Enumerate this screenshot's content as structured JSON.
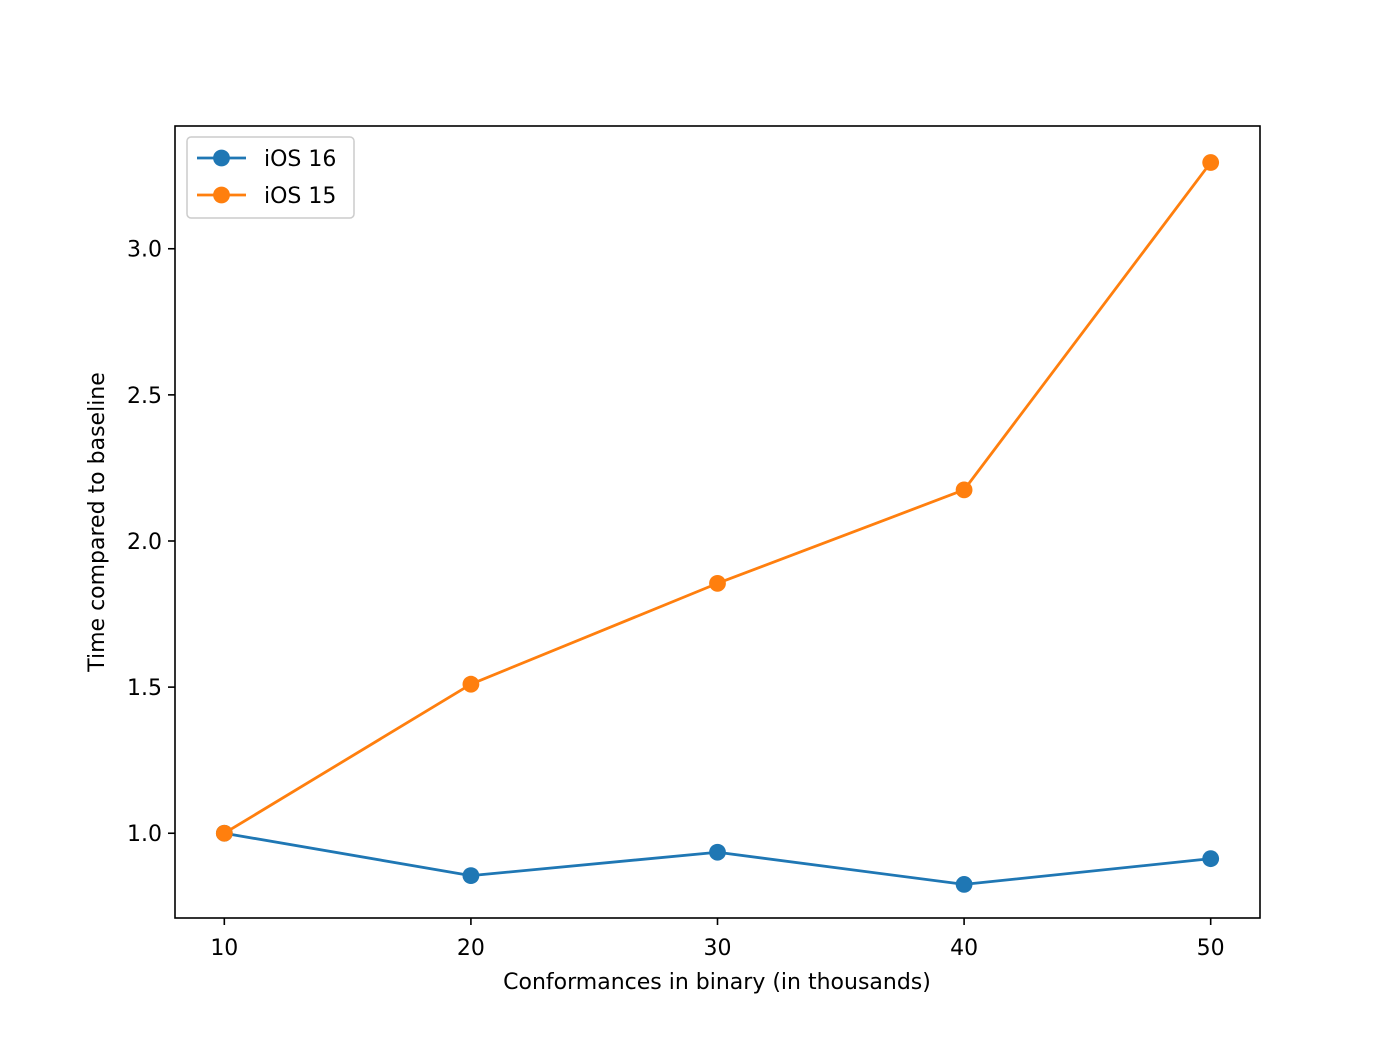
{
  "chart_data": {
    "type": "line",
    "title": "",
    "xlabel": "Conformances in binary (in thousands)",
    "ylabel": "Time compared to baseline",
    "x": [
      10,
      20,
      30,
      40,
      50
    ],
    "x_tick_labels": [
      "10",
      "20",
      "30",
      "40",
      "50"
    ],
    "y_ticks": [
      1.0,
      1.5,
      2.0,
      2.5,
      3.0
    ],
    "y_tick_labels": [
      "1.0",
      "1.5",
      "2.0",
      "2.5",
      "3.0"
    ],
    "xlim": [
      8,
      52
    ],
    "ylim": [
      0.71,
      3.42
    ],
    "grid": false,
    "legend_position": "upper left",
    "series": [
      {
        "name": "iOS 16",
        "color": "#1f77b4",
        "marker": "circle",
        "values": [
          1.0,
          0.855,
          0.935,
          0.825,
          0.913
        ]
      },
      {
        "name": "iOS 15",
        "color": "#ff7f0e",
        "marker": "circle",
        "values": [
          1.0,
          1.51,
          1.855,
          2.175,
          3.295
        ]
      }
    ]
  }
}
